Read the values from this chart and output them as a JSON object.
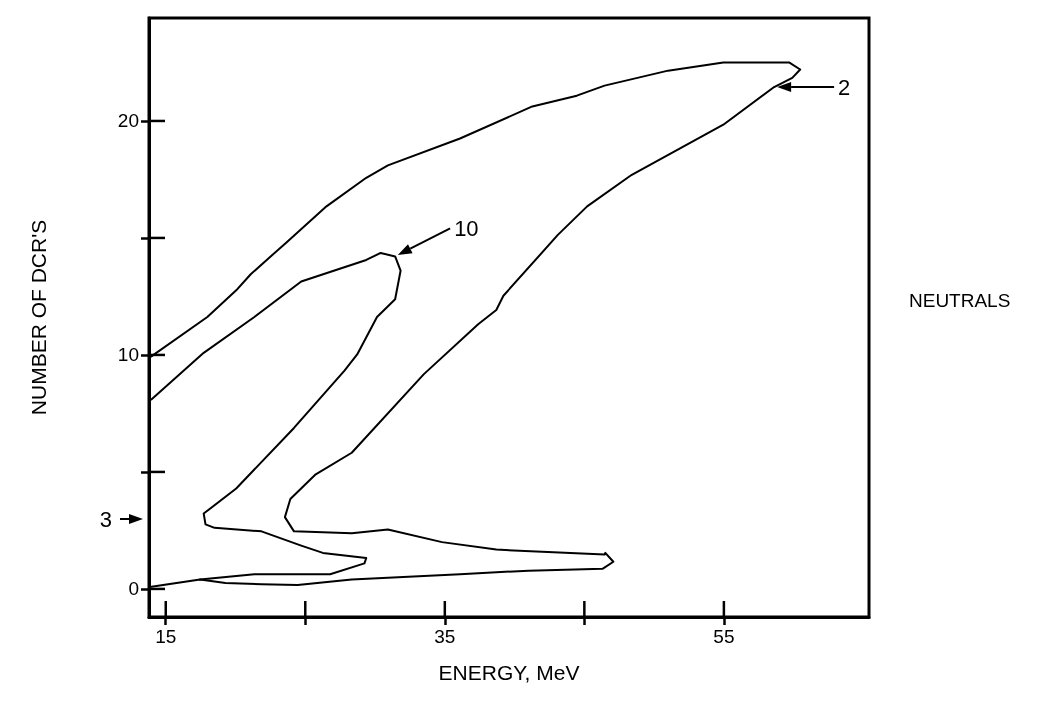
{
  "chart_data": {
    "type": "line",
    "xlabel": "ENERGY, MeV",
    "ylabel": "NUMBER OF DCR'S",
    "xlim": [
      13.8,
      65.4
    ],
    "xticks": [
      15,
      {
        "value": 25,
        "label": null
      },
      35,
      {
        "value": 45,
        "label": null
      },
      55
    ],
    "ylim": [
      -1.2,
      24.4
    ],
    "yticks": [
      0,
      {
        "value": 5,
        "label": null
      },
      10,
      {
        "value": 15,
        "label": null
      },
      20
    ],
    "grid": false,
    "marker": "none",
    "line_style": "solid",
    "series": [
      {
        "color": "#000000",
        "x": [
          13.97,
          17.46,
          19.28,
          21.86,
          24.45,
          28.33,
          36.09,
          41.0,
          46.3,
          47.08,
          46.5,
          46.45,
          38.69,
          34.8,
          30.92,
          28.33,
          24.19,
          23.54,
          23.93,
          25.75,
          28.33,
          33.5,
          37.39,
          38.69,
          39.2,
          43.1,
          45.2,
          48.4,
          54.96,
          58.6,
          59.9,
          60.47,
          59.67,
          54.96,
          51.0,
          46.45,
          44.46,
          41.27,
          36.09,
          30.92,
          29.37,
          26.52,
          23.67,
          21.09,
          20.05,
          17.98,
          13.97
        ],
        "values": [
          0.09,
          0.4,
          0.25,
          0.2,
          0.17,
          0.4,
          0.63,
          0.78,
          0.86,
          1.16,
          1.54,
          1.47,
          1.68,
          2.0,
          2.54,
          2.38,
          2.46,
          3.07,
          3.84,
          4.9,
          5.82,
          9.18,
          11.31,
          11.92,
          12.53,
          15.13,
          16.35,
          17.7,
          19.84,
          21.45,
          21.84,
          22.2,
          22.5,
          22.5,
          22.15,
          21.51,
          21.08,
          20.62,
          19.25,
          18.1,
          17.57,
          16.35,
          14.82,
          13.45,
          12.76,
          11.62,
          9.94
        ]
      },
      {
        "color": "#000000",
        "x": [
          13.97,
          17.72,
          21.35,
          24.71,
          29.37,
          30.4,
          31.44,
          31.83,
          31.44,
          30.14,
          28.72,
          27.81,
          24.19,
          20.05,
          17.72,
          17.85,
          18.5,
          21.86,
          24.71,
          26.26,
          29.37,
          29.24,
          26.78,
          21.35,
          17.46
        ],
        "values": [
          8.1,
          10.09,
          11.62,
          13.14,
          14.06,
          14.36,
          14.21,
          13.6,
          12.38,
          11.62,
          10.02,
          9.33,
          6.88,
          4.29,
          3.22,
          2.76,
          2.61,
          2.46,
          1.85,
          1.54,
          1.32,
          1.09,
          0.63,
          0.63,
          0.4
        ]
      }
    ],
    "annotations": [
      {
        "text": "2",
        "x": 58.6,
        "y": 21.45
      },
      {
        "text": "10",
        "x": 31.44,
        "y": 14.21
      },
      "3",
      "NEUTRALS"
    ]
  }
}
